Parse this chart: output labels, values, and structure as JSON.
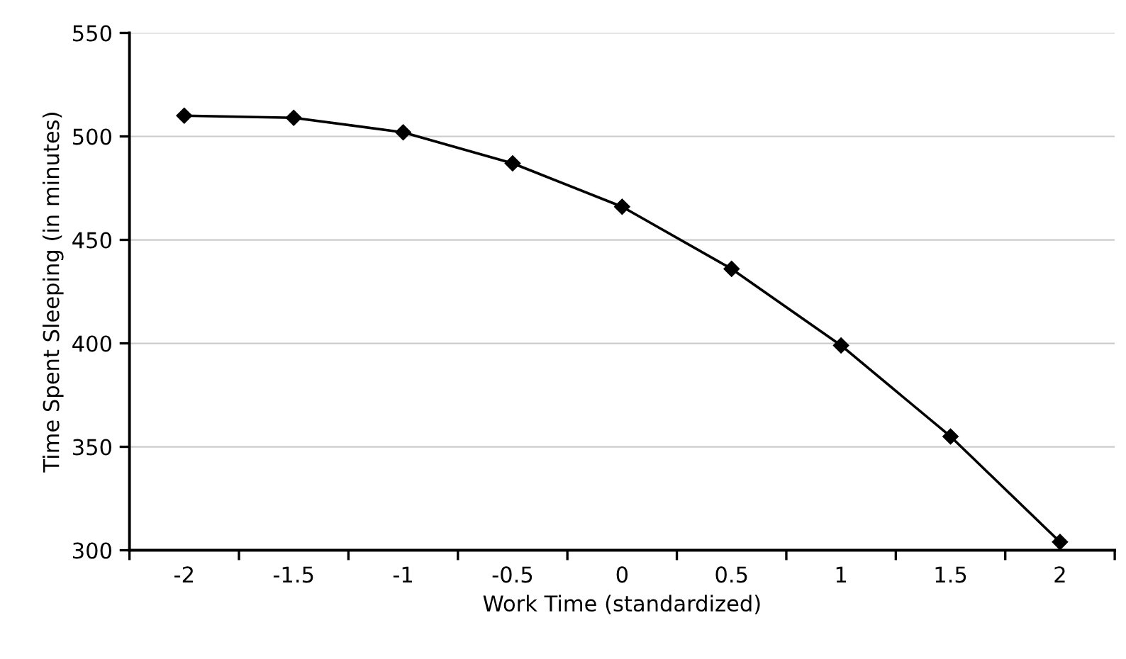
{
  "chart_data": {
    "type": "line",
    "xlabel": "Work Time (standardized)",
    "ylabel": "Time Spent Sleeping (in minutes)",
    "categories": [
      "-2",
      "-1.5",
      "-1",
      "-0.5",
      "0",
      "0.5",
      "1",
      "1.5",
      "2"
    ],
    "series": [
      {
        "color": "#000000",
        "values": [
          510,
          509,
          502,
          487,
          466,
          436,
          399,
          355,
          304
        ]
      }
    ],
    "ylim": [
      300,
      550
    ],
    "yticks": [
      300,
      350,
      400,
      450,
      500,
      550
    ],
    "grid": "y",
    "marker": "diamond",
    "line_style": "solid",
    "legend": false
  }
}
